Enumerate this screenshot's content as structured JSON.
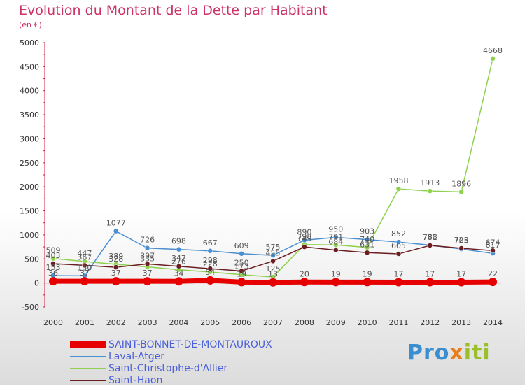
{
  "chart_data": {
    "type": "line",
    "title": "Evolution du Montant de la Dette par Habitant",
    "subtitle": "(en €)",
    "x": [
      "2000",
      "2001",
      "2002",
      "2003",
      "2004",
      "2005",
      "2006",
      "2007",
      "2008",
      "2009",
      "2010",
      "2011",
      "2012",
      "2013",
      "2014"
    ],
    "ylim": [
      -500,
      5000
    ],
    "yticks": [
      "-500",
      "0",
      "500",
      "1000",
      "1500",
      "2000",
      "2500",
      "3000",
      "3500",
      "4000",
      "4500",
      "5000"
    ],
    "grid": false,
    "legend_position": "bottom-left",
    "series": [
      {
        "name": "SAINT-BONNET-DE-MONTAUROUX",
        "color": "#e60000",
        "values": [
          36,
          37,
          37,
          37,
          34,
          54,
          19,
          13,
          20,
          19,
          19,
          17,
          17,
          17,
          22
        ],
        "labels": [
          "36",
          "37",
          "37",
          "37",
          "34",
          "54",
          "19",
          "13",
          "20",
          "19",
          "19",
          "17",
          "17",
          "17",
          "22"
        ]
      },
      {
        "name": "Laval-Atger",
        "color": "#4a8fd0",
        "values": [
          153,
          150,
          1077,
          726,
          698,
          667,
          609,
          575,
          890,
          950,
          903,
          852,
          788,
          705,
          617
        ],
        "labels": [
          "153",
          "150",
          "1077",
          "726",
          "698",
          "667",
          "609",
          "575",
          "890",
          "950",
          "903",
          "852",
          "788",
          "705",
          "617"
        ]
      },
      {
        "name": "Saint-Christophe-d'Allier",
        "color": "#8fd14f",
        "values": [
          509,
          447,
          389,
          335,
          276,
          228,
          173,
          125,
          798,
          791,
          740,
          1958,
          1913,
          1896,
          4668
        ],
        "labels": [
          "509",
          "447",
          "389",
          "335",
          "276",
          "228",
          "173",
          "125",
          "798",
          "791",
          "740",
          "1958",
          "1913",
          "1896",
          "4668"
        ]
      },
      {
        "name": "Saint-Haon",
        "color": "#6b1e22",
        "values": [
          403,
          367,
          328,
          397,
          347,
          298,
          250,
          455,
          749,
          684,
          631,
          605,
          781,
          723,
          674
        ],
        "labels": [
          "403",
          "367",
          "328",
          "397",
          "347",
          "298",
          "250",
          "455",
          "749",
          "684",
          "631",
          "605",
          "781",
          "723",
          "674"
        ]
      }
    ]
  },
  "logo": {
    "part1": "Pro",
    "part2": "x",
    "part3": "iti"
  }
}
